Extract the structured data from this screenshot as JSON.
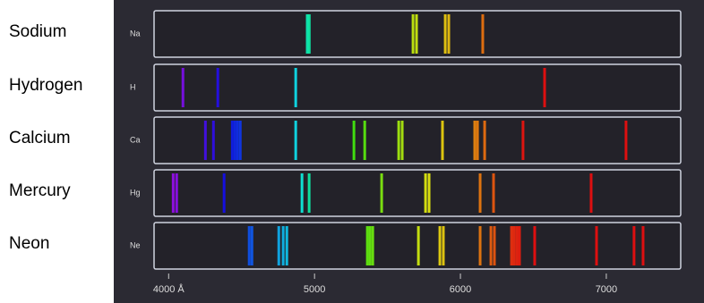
{
  "chart_data": {
    "type": "spectrum",
    "xlim": [
      3900,
      7510
    ],
    "xticks": [
      {
        "value": 4000,
        "label": "4000 Å"
      },
      5000,
      6000,
      7000
    ],
    "series": [
      {
        "name": "Sodium",
        "symbol": "Na",
        "values": [
          4950,
          4964,
          5675,
          5699,
          5896,
          5920,
          6153
        ]
      },
      {
        "name": "Hydrogen",
        "symbol": "H",
        "values": [
          4098,
          4337,
          4871,
          6577
        ]
      },
      {
        "name": "Calcium",
        "symbol": "Ca",
        "values": [
          4252,
          4307,
          4436,
          4454,
          4472,
          4491,
          4871,
          5270,
          5344,
          5577,
          5601,
          5877,
          6098,
          6117,
          6166,
          6429,
          7135
        ]
      },
      {
        "name": "Mercury",
        "symbol": "Hg",
        "values": [
          4031,
          4055,
          4380,
          4914,
          4963,
          5460,
          5761,
          5785,
          6135,
          6227,
          6896
        ]
      },
      {
        "name": "Neon",
        "symbol": "Ne",
        "values": [
          4552,
          4571,
          4755,
          4785,
          4810,
          5362,
          5380,
          5399,
          5712,
          5859,
          5883,
          6135,
          6209,
          6233,
          6350,
          6368,
          6387,
          6405,
          6509,
          6933,
          7190,
          7252
        ]
      }
    ]
  }
}
